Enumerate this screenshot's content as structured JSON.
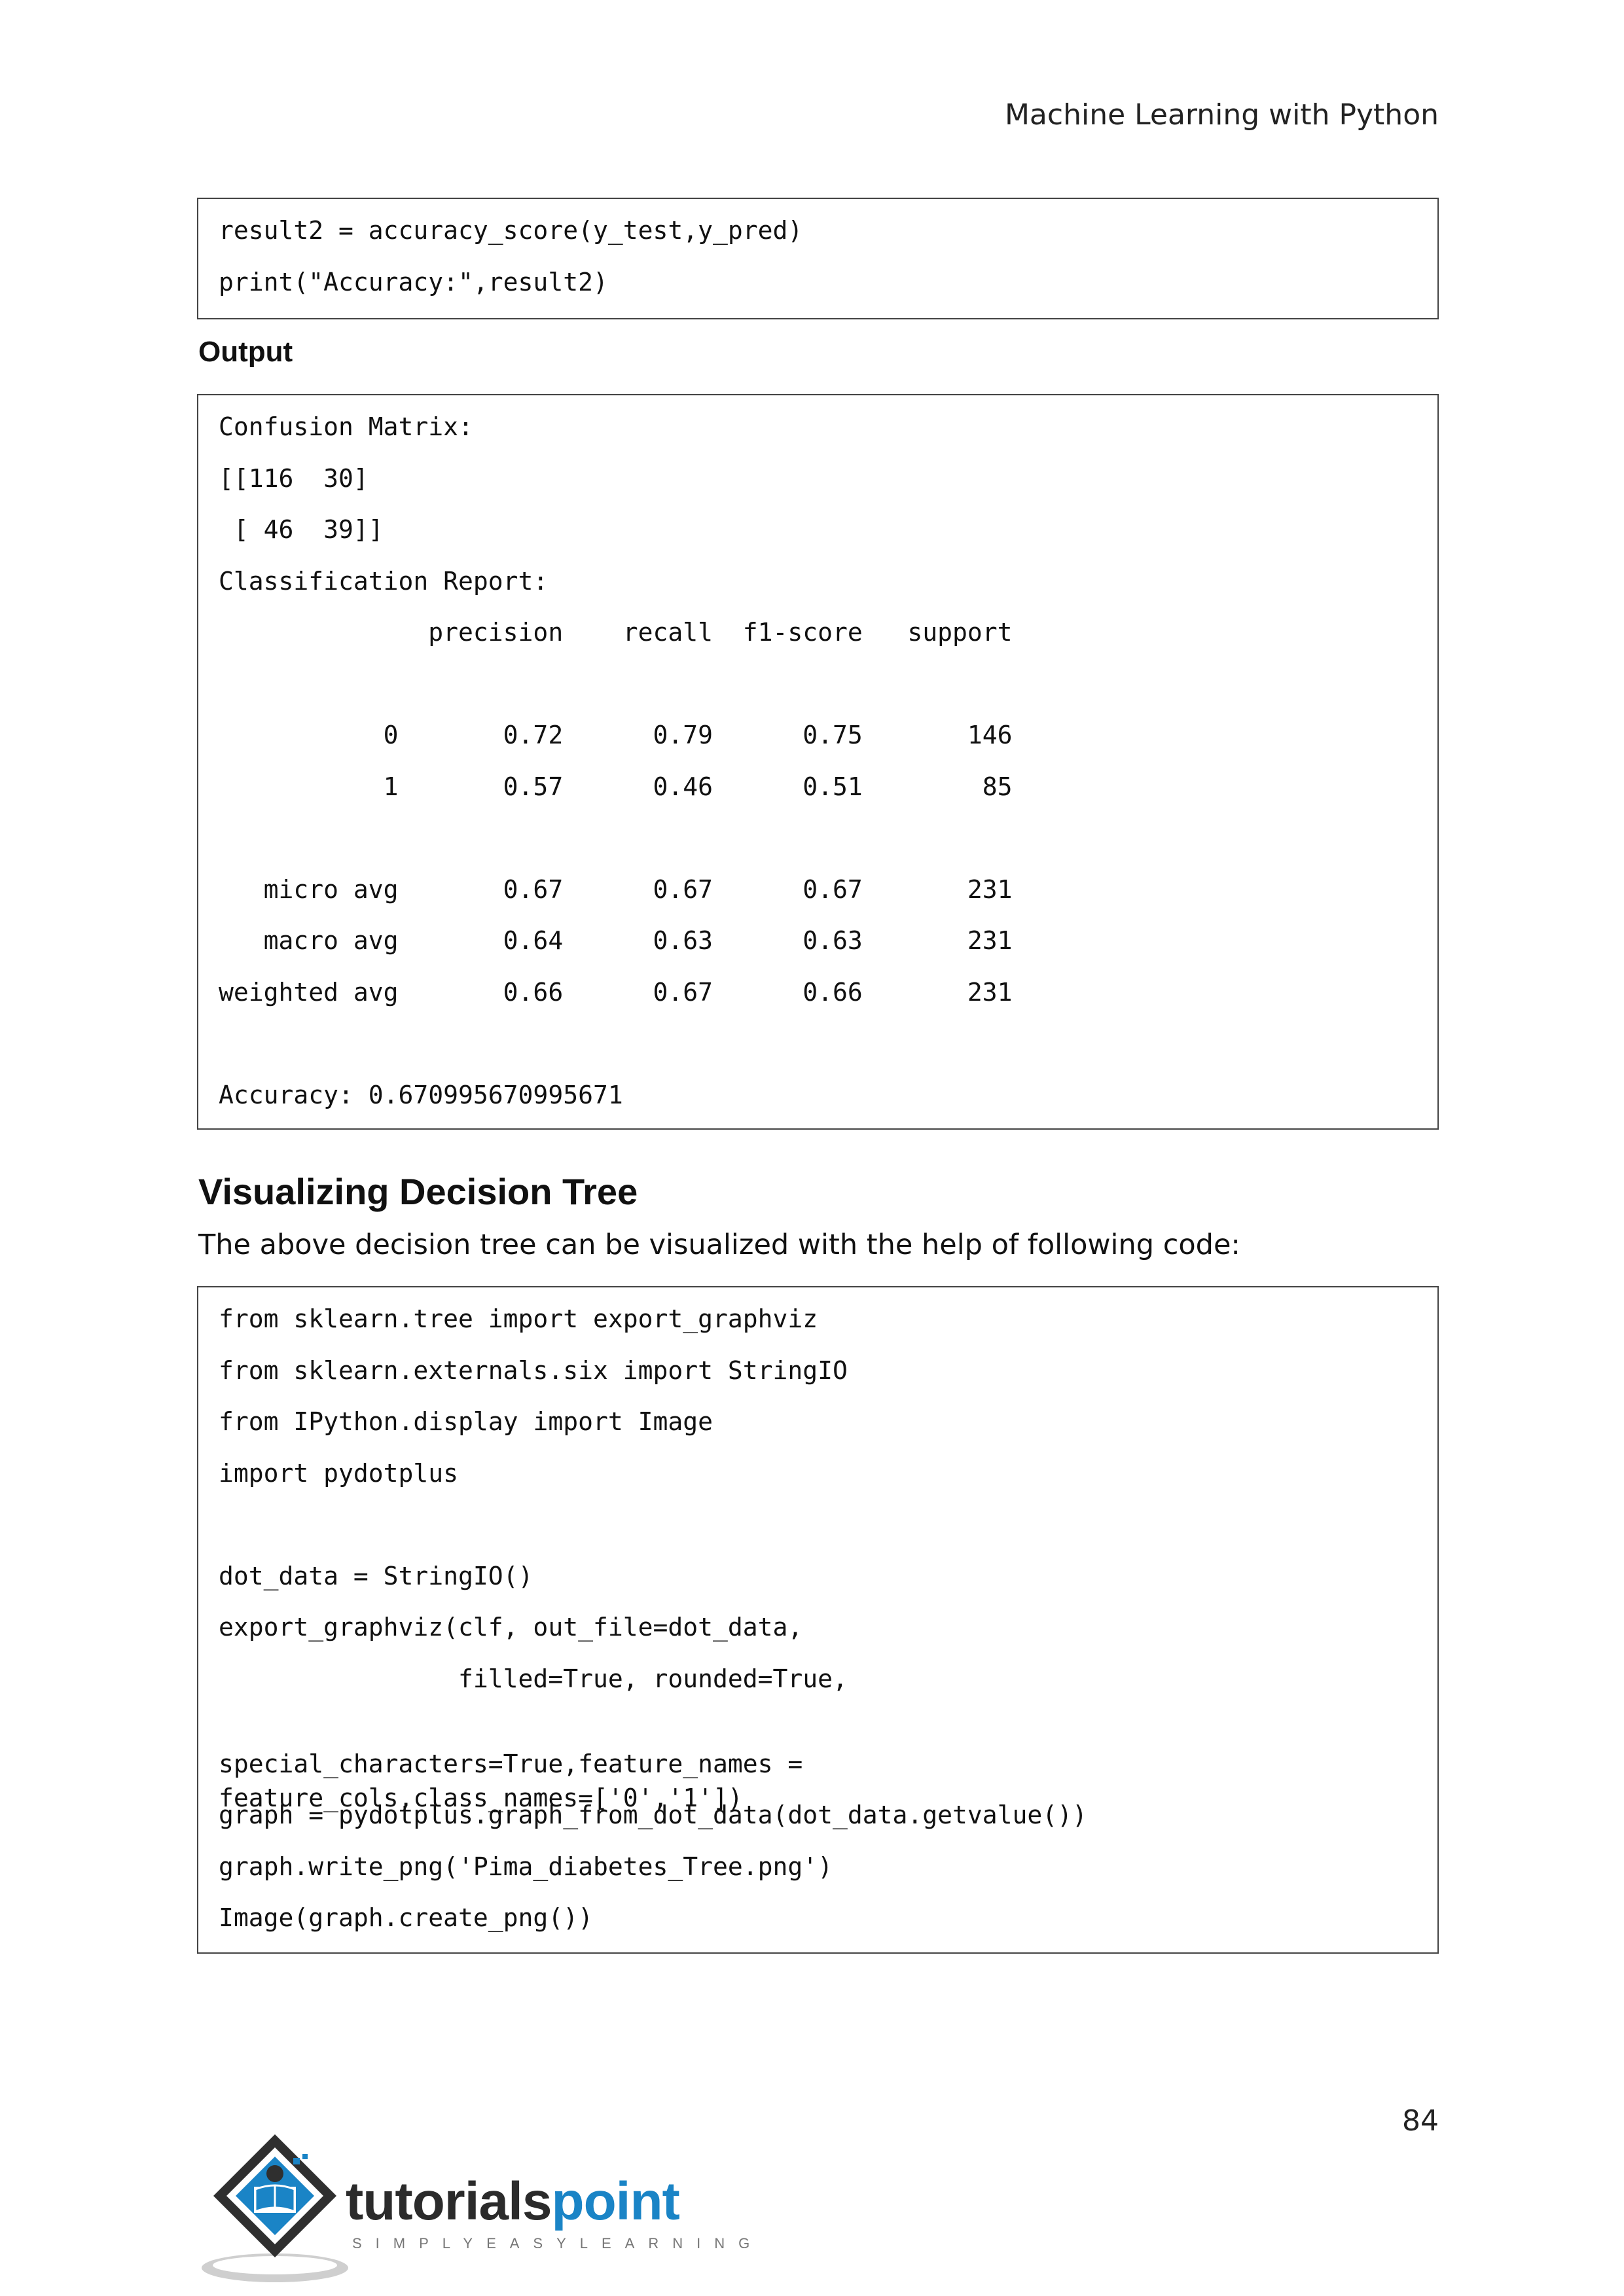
{
  "header": {
    "running_head": "Machine Learning with Python"
  },
  "code_block_1": {
    "lines": [
      "result2 = accuracy_score(y_test,y_pred)",
      "print(\"Accuracy:\",result2)"
    ]
  },
  "output_label": "Output",
  "output_block": {
    "lines": [
      "Confusion Matrix:",
      "[[116  30]",
      " [ 46  39]]",
      "Classification Report:",
      "              precision    recall  f1-score   support",
      "",
      "           0       0.72      0.79      0.75       146",
      "           1       0.57      0.46      0.51        85",
      "",
      "   micro avg       0.67      0.67      0.67       231",
      "   macro avg       0.64      0.63      0.63       231",
      "weighted avg       0.66      0.67      0.66       231",
      "",
      "Accuracy: 0.670995670995671"
    ]
  },
  "section": {
    "title": "Visualizing Decision Tree",
    "intro": "The above decision tree can be visualized with the help of following code:"
  },
  "code_block_2": {
    "lines": [
      "from sklearn.tree import export_graphviz",
      "from sklearn.externals.six import StringIO",
      "from IPython.display import Image",
      "import pydotplus",
      "",
      "dot_data = StringIO()",
      "export_graphviz(clf, out_file=dot_data,",
      "                filled=True, rounded=True,",
      "                special_characters=True,feature_names = feature_cols,class_names=['0','1'])",
      "graph = pydotplus.graph_from_dot_data(dot_data.getvalue())",
      "graph.write_png('Pima_diabetes_Tree.png')",
      "Image(graph.create_png())"
    ]
  },
  "footer": {
    "page_number": "84",
    "logo_word_a": "tutorials",
    "logo_word_b": "point",
    "logo_tagline": "SIMPLYEASYLEARNING"
  },
  "colors": {
    "logo_blue": "#1a84c6",
    "logo_dark": "#2b2b2b",
    "border": "#444444"
  }
}
